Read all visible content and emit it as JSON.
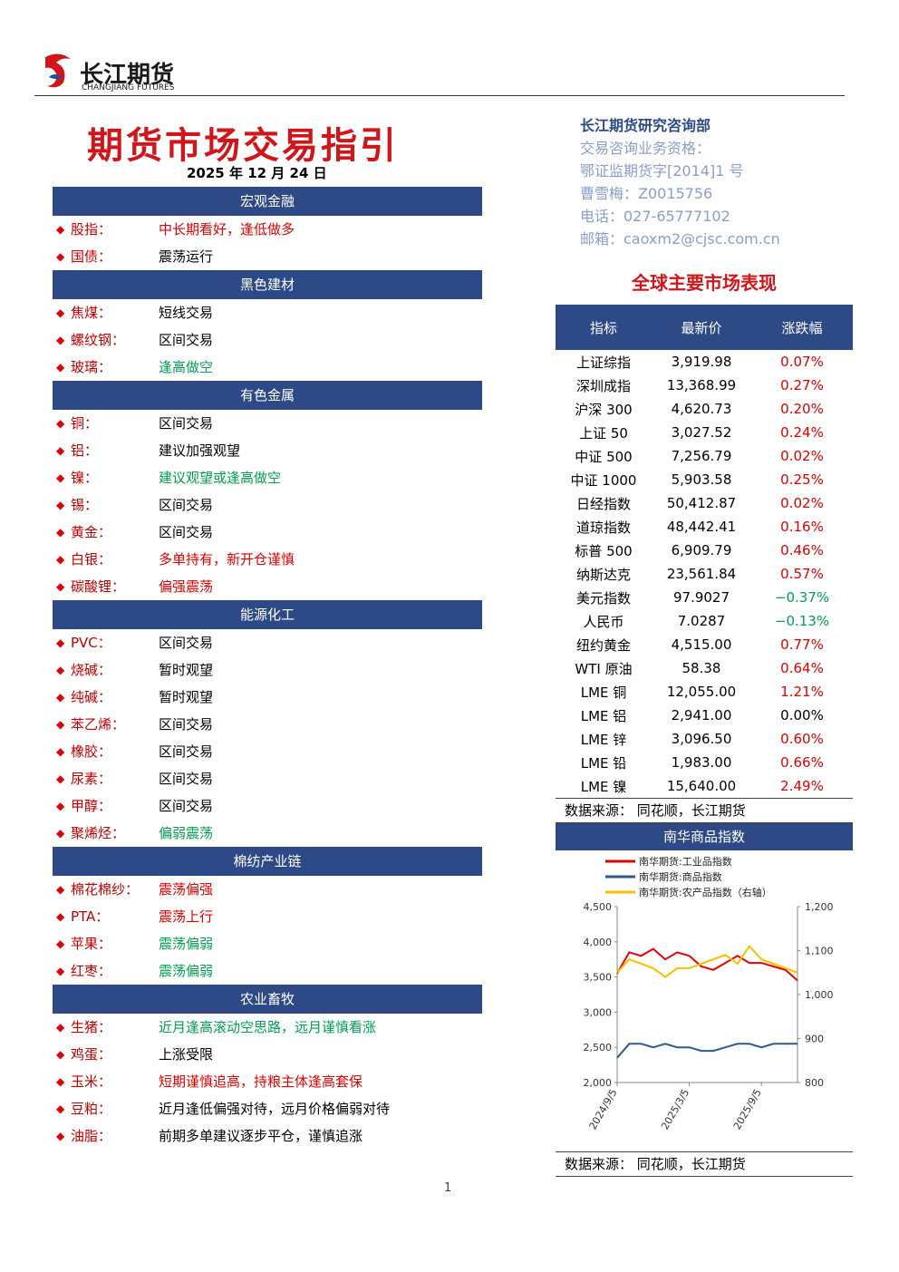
{
  "header": {
    "logo_cn": "长江期货",
    "logo_en": "CHANGJIANG FUTURES"
  },
  "title": "期货市场交易指引",
  "date": "2025 年 12 月 24 日",
  "contact": [
    "长江期货研究咨询部",
    "交易咨询业务资格：",
    "鄂证监期货字[2014]1 号",
    "曹雪梅：Z0015756",
    "电话：027-65777102",
    "邮箱：caoxm2@cjsc.com.cn"
  ],
  "sections": [
    {
      "title": "宏观金融",
      "items": [
        {
          "name": "股指：",
          "view": "中长期看好，逢低做多",
          "color": "#e00000"
        },
        {
          "name": "国债：",
          "view": "震荡运行",
          "color": "#000000"
        }
      ]
    },
    {
      "title": "黑色建材",
      "items": [
        {
          "name": "焦煤：",
          "view": "短线交易",
          "color": "#000000"
        },
        {
          "name": "螺纹钢：",
          "view": "区间交易",
          "color": "#000000"
        },
        {
          "name": "玻璃：",
          "view": "逢高做空",
          "color": "#00a050"
        }
      ]
    },
    {
      "title": "有色金属",
      "items": [
        {
          "name": "铜：",
          "view": "区间交易",
          "color": "#000000"
        },
        {
          "name": "铝：",
          "view": "建议加强观望",
          "color": "#000000"
        },
        {
          "name": "镍：",
          "view": "建议观望或逢高做空",
          "color": "#00a050"
        },
        {
          "name": "锡：",
          "view": "区间交易",
          "color": "#000000"
        },
        {
          "name": "黄金：",
          "view": "区间交易",
          "color": "#000000"
        },
        {
          "name": "白银：",
          "view": "多单持有，新开仓谨慎",
          "color": "#e00000"
        },
        {
          "name": "碳酸锂：",
          "view": "偏强震荡",
          "color": "#e00000"
        }
      ]
    },
    {
      "title": "能源化工",
      "items": [
        {
          "name": "PVC：",
          "view": "区间交易",
          "color": "#000000"
        },
        {
          "name": "烧碱：",
          "view": "暂时观望",
          "color": "#000000"
        },
        {
          "name": "纯碱：",
          "view": "暂时观望",
          "color": "#000000"
        },
        {
          "name": "苯乙烯：",
          "view": "区间交易",
          "color": "#000000"
        },
        {
          "name": "橡胶：",
          "view": "区间交易",
          "color": "#000000"
        },
        {
          "name": "尿素：",
          "view": "区间交易",
          "color": "#000000"
        },
        {
          "name": "甲醇：",
          "view": "区间交易",
          "color": "#000000"
        },
        {
          "name": "聚烯烃：",
          "view": "偏弱震荡",
          "color": "#00a050"
        }
      ]
    },
    {
      "title": "棉纺产业链",
      "items": [
        {
          "name": "棉花棉纱：",
          "view": "震荡偏强",
          "color": "#e00000"
        },
        {
          "name": "PTA：",
          "view": "震荡上行",
          "color": "#e00000"
        },
        {
          "name": "苹果：",
          "view": "震荡偏弱",
          "color": "#00a050"
        },
        {
          "name": "红枣：",
          "view": "震荡偏弱",
          "color": "#00a050"
        }
      ]
    },
    {
      "title": "农业畜牧",
      "items": [
        {
          "name": "生猪：",
          "view": "近月逢高滚动空思路，远月谨慎看涨",
          "color": "#00a050"
        },
        {
          "name": "鸡蛋：",
          "view": "上涨受限",
          "color": "#000000"
        },
        {
          "name": "玉米：",
          "view": "短期谨慎追高，持粮主体逢高套保",
          "color": "#e00000"
        },
        {
          "name": "豆粕：",
          "view": "近月逢低偏强对待，远月价格偏弱对待",
          "color": "#000000"
        },
        {
          "name": "油脂：",
          "view": "前期多单建议逐步平仓，谨慎追涨",
          "color": "#000000"
        }
      ]
    }
  ],
  "market": {
    "title": "全球主要市场表现",
    "header": [
      "指标",
      "最新价",
      "涨跌幅"
    ],
    "rows": [
      {
        "name": "上证综指",
        "price": "3,919.98",
        "change": "0.07%",
        "color": "#e00000"
      },
      {
        "name": "深圳成指",
        "price": "13,368.99",
        "change": "0.27%",
        "color": "#e00000"
      },
      {
        "name": "沪深 300",
        "price": "4,620.73",
        "change": "0.20%",
        "color": "#e00000"
      },
      {
        "name": "上证 50",
        "price": "3,027.52",
        "change": "0.24%",
        "color": "#e00000"
      },
      {
        "name": "中证 500",
        "price": "7,256.79",
        "change": "0.02%",
        "color": "#e00000"
      },
      {
        "name": "中证 1000",
        "price": "5,903.58",
        "change": "0.25%",
        "color": "#e00000"
      },
      {
        "name": "日经指数",
        "price": "50,412.87",
        "change": "0.02%",
        "color": "#e00000"
      },
      {
        "name": "道琼指数",
        "price": "48,442.41",
        "change": "0.16%",
        "color": "#e00000"
      },
      {
        "name": "标普 500",
        "price": "6,909.79",
        "change": "0.46%",
        "color": "#e00000"
      },
      {
        "name": "纳斯达克",
        "price": "23,561.84",
        "change": "0.57%",
        "color": "#e00000"
      },
      {
        "name": "美元指数",
        "price": "97.9027",
        "change": "−0.37%",
        "color": "#00a050"
      },
      {
        "name": "人民币",
        "price": "7.0287",
        "change": "−0.13%",
        "color": "#00a050"
      },
      {
        "name": "纽约黄金",
        "price": "4,515.00",
        "change": "0.77%",
        "color": "#e00000"
      },
      {
        "name": "WTI 原油",
        "price": "58.38",
        "change": "0.64%",
        "color": "#e00000"
      },
      {
        "name": "LME 铜",
        "price": "12,055.00",
        "change": "1.21%",
        "color": "#e00000"
      },
      {
        "name": "LME 铝",
        "price": "2,941.00",
        "change": "0.00%",
        "color": "#000000"
      },
      {
        "name": "LME 锌",
        "price": "3,096.50",
        "change": "0.60%",
        "color": "#e00000"
      },
      {
        "name": "LME 铅",
        "price": "1,983.00",
        "change": "0.66%",
        "color": "#e00000"
      },
      {
        "name": "LME 镍",
        "price": "15,640.00",
        "change": "2.49%",
        "color": "#e00000"
      }
    ],
    "source": "数据来源：   同花顺，长江期货"
  },
  "chart_data": {
    "type": "line",
    "title": "南华商品指数",
    "categories": [
      "2024/9/5",
      null,
      null,
      null,
      null,
      null,
      "2025/3/5",
      null,
      null,
      null,
      null,
      null,
      "2025/9/5",
      null,
      null,
      null
    ],
    "series": [
      {
        "name": "南华期货:工业品指数",
        "color": "#e60000",
        "values": [
          3550,
          3850,
          3800,
          3900,
          3750,
          3850,
          3800,
          3650,
          3600,
          3700,
          3800,
          3700,
          3700,
          3650,
          3600,
          3450
        ]
      },
      {
        "name": "南华期货:商品指数",
        "color": "#2f5a8a",
        "values": [
          2350,
          2550,
          2550,
          2500,
          2550,
          2500,
          2500,
          2450,
          2450,
          2500,
          2550,
          2550,
          2500,
          2550,
          2550,
          2550
        ]
      },
      {
        "name": "南华期货:农产品指数（右轴）",
        "color": "#f5c000",
        "axis": "y2",
        "values": [
          1050,
          1080,
          1070,
          1060,
          1040,
          1060,
          1060,
          1070,
          1080,
          1090,
          1070,
          1110,
          1080,
          1070,
          1060,
          1050
        ]
      }
    ],
    "ylim": [
      2000,
      4500
    ],
    "yticks": [
      {
        "value": 2000,
        "label": "2,000"
      },
      {
        "value": 2500,
        "label": "2,500"
      },
      {
        "value": 3000,
        "label": "3,000"
      },
      {
        "value": 3500,
        "label": "3,500"
      },
      {
        "value": 4000,
        "label": "4,000"
      },
      {
        "value": 4500,
        "label": "4,500"
      }
    ],
    "y2lim": [
      800,
      1200
    ],
    "y2ticks": [
      800,
      900,
      {
        "value": 1000,
        "label": "1,000"
      },
      {
        "value": 1100,
        "label": "1,100"
      },
      {
        "value": 1200,
        "label": "1,200"
      }
    ],
    "source": "数据来源：   同花顺，长江期货"
  },
  "page_number": "1"
}
